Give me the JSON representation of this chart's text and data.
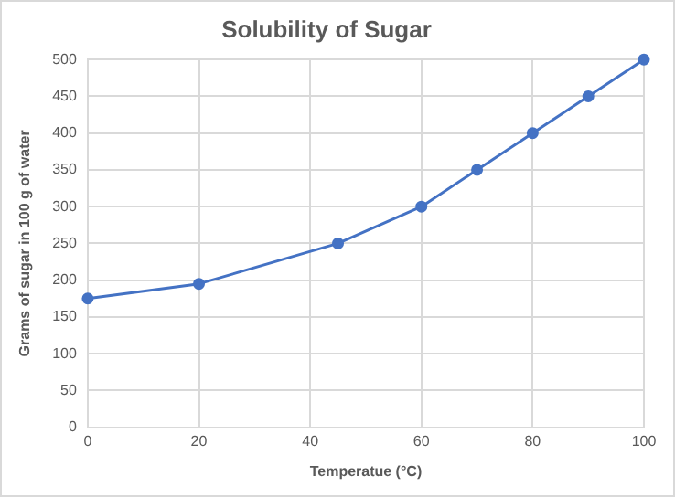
{
  "chart_data": {
    "type": "line",
    "title": "Solubility of Sugar",
    "xlabel": "Temperatue (°C)",
    "ylabel": "Grams of sugar in 100 g of water",
    "x": [
      0,
      20,
      45,
      60,
      70,
      80,
      90,
      100
    ],
    "series": [
      {
        "color": "#4472c4",
        "values": [
          175,
          195,
          250,
          300,
          350,
          400,
          450,
          500
        ]
      }
    ],
    "xlim": [
      0,
      100
    ],
    "xticks": [
      0,
      20,
      40,
      60,
      80,
      100
    ],
    "ylim": [
      0,
      500
    ],
    "yticks": [
      0,
      50,
      100,
      150,
      200,
      250,
      300,
      350,
      400,
      450,
      500
    ],
    "grid": true,
    "marker": "circle",
    "line_style": "solid",
    "legend": false
  }
}
